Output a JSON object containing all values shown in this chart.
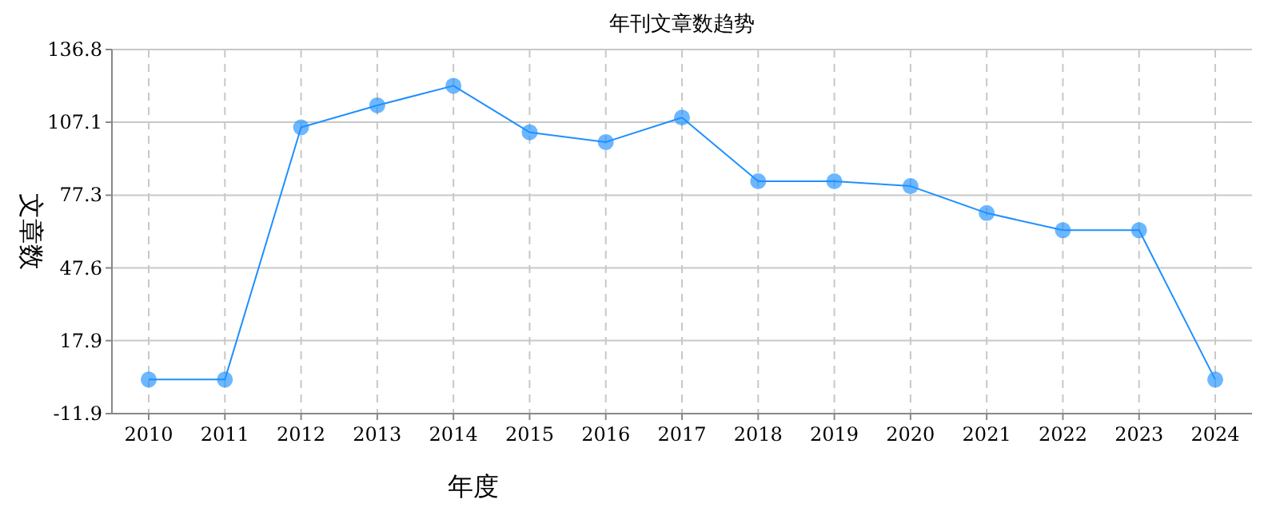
{
  "chart_data": {
    "type": "line",
    "title": "年刊文章数趋势",
    "xlabel": "年度",
    "ylabel": "文章数",
    "categories": [
      "2010",
      "2011",
      "2012",
      "2013",
      "2014",
      "2015",
      "2016",
      "2017",
      "2018",
      "2019",
      "2020",
      "2021",
      "2022",
      "2023",
      "2024"
    ],
    "series": [
      {
        "color": "#1e90ff",
        "values": [
          2,
          2,
          105,
          114,
          122,
          103,
          99,
          109,
          83,
          83,
          81,
          70,
          63,
          63,
          2
        ]
      }
    ],
    "ylim": [
      -11.9,
      136.8
    ],
    "yticks": [
      -11.9,
      17.9,
      47.6,
      77.3,
      107.1,
      136.8
    ],
    "grid": true,
    "marker": "circle",
    "line_style": "solid"
  }
}
